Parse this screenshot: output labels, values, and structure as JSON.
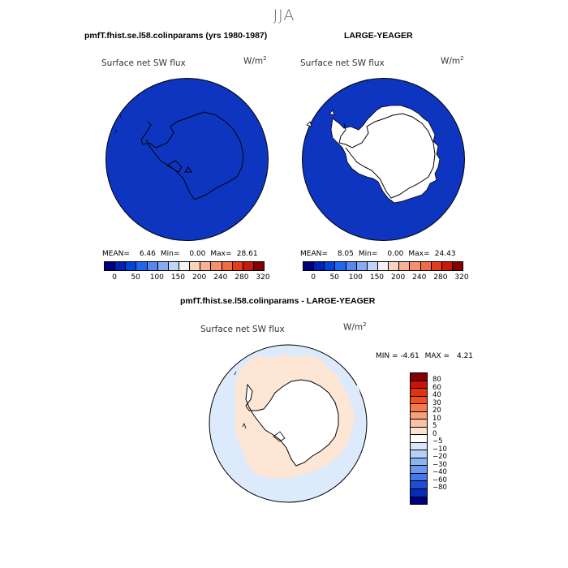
{
  "figure": {
    "season": "JJA"
  },
  "panels": {
    "left": {
      "title": "pmfT.fhist.se.l58.colinparams (yrs 1980-1987)",
      "variable": "Surface net SW flux",
      "units": "W/m",
      "units_sup": "2",
      "stats": {
        "mean_label": "MEAN=",
        "mean": "6.46",
        "min_label": "Min=",
        "min": "0.00",
        "max_label": "Max=",
        "max": "28.61"
      }
    },
    "right": {
      "title": "LARGE-YEAGER",
      "variable": "Surface net SW flux",
      "units": "W/m",
      "units_sup": "2",
      "stats": {
        "mean_label": "MEAN=",
        "mean": "8.05",
        "min_label": "Min=",
        "min": "0.00",
        "max_label": "Max=",
        "max": "24.43"
      }
    },
    "diff": {
      "title": "pmfT.fhist.se.l58.colinparams - LARGE-YEAGER",
      "variable": "Surface net SW flux",
      "units": "W/m",
      "units_sup": "2",
      "stats": {
        "min_label": "MIN =",
        "min": "-4.61",
        "max_label": "MAX =",
        "max": "4.21"
      }
    }
  },
  "colorbars": {
    "abs": {
      "colors": [
        "#00007f",
        "#0022b4",
        "#0044dd",
        "#2266ee",
        "#5588f0",
        "#88aaf5",
        "#bfd6fa",
        "#f3f3f3",
        "#fbd2bd",
        "#f8b096",
        "#f5906e",
        "#f26a44",
        "#e63a1c",
        "#c81a0a",
        "#850000"
      ],
      "ticks": [
        "0",
        "50",
        "100",
        "150",
        "200",
        "240",
        "280",
        "320"
      ]
    },
    "diff": {
      "colors": [
        "#850000",
        "#c8140a",
        "#e03310",
        "#f25020",
        "#f57a4a",
        "#f8a07a",
        "#fbc2a4",
        "#fde2d0",
        "#ffffff",
        "#d6e6fb",
        "#b4cff8",
        "#8eb3f4",
        "#6a97ef",
        "#4577e8",
        "#1e4dd8",
        "#0a2bb8",
        "#00007f"
      ],
      "ticks": [
        "80",
        "60",
        "40",
        "30",
        "20",
        "10",
        "5",
        "0",
        "−5",
        "−10",
        "−20",
        "−30",
        "−40",
        "−60",
        "−80"
      ]
    }
  },
  "map_colors": {
    "ocean_abs": "#0d35c0",
    "ice": "#ffffff",
    "diff_pos": "#fde6d4",
    "diff_neg": "#dceafb"
  }
}
